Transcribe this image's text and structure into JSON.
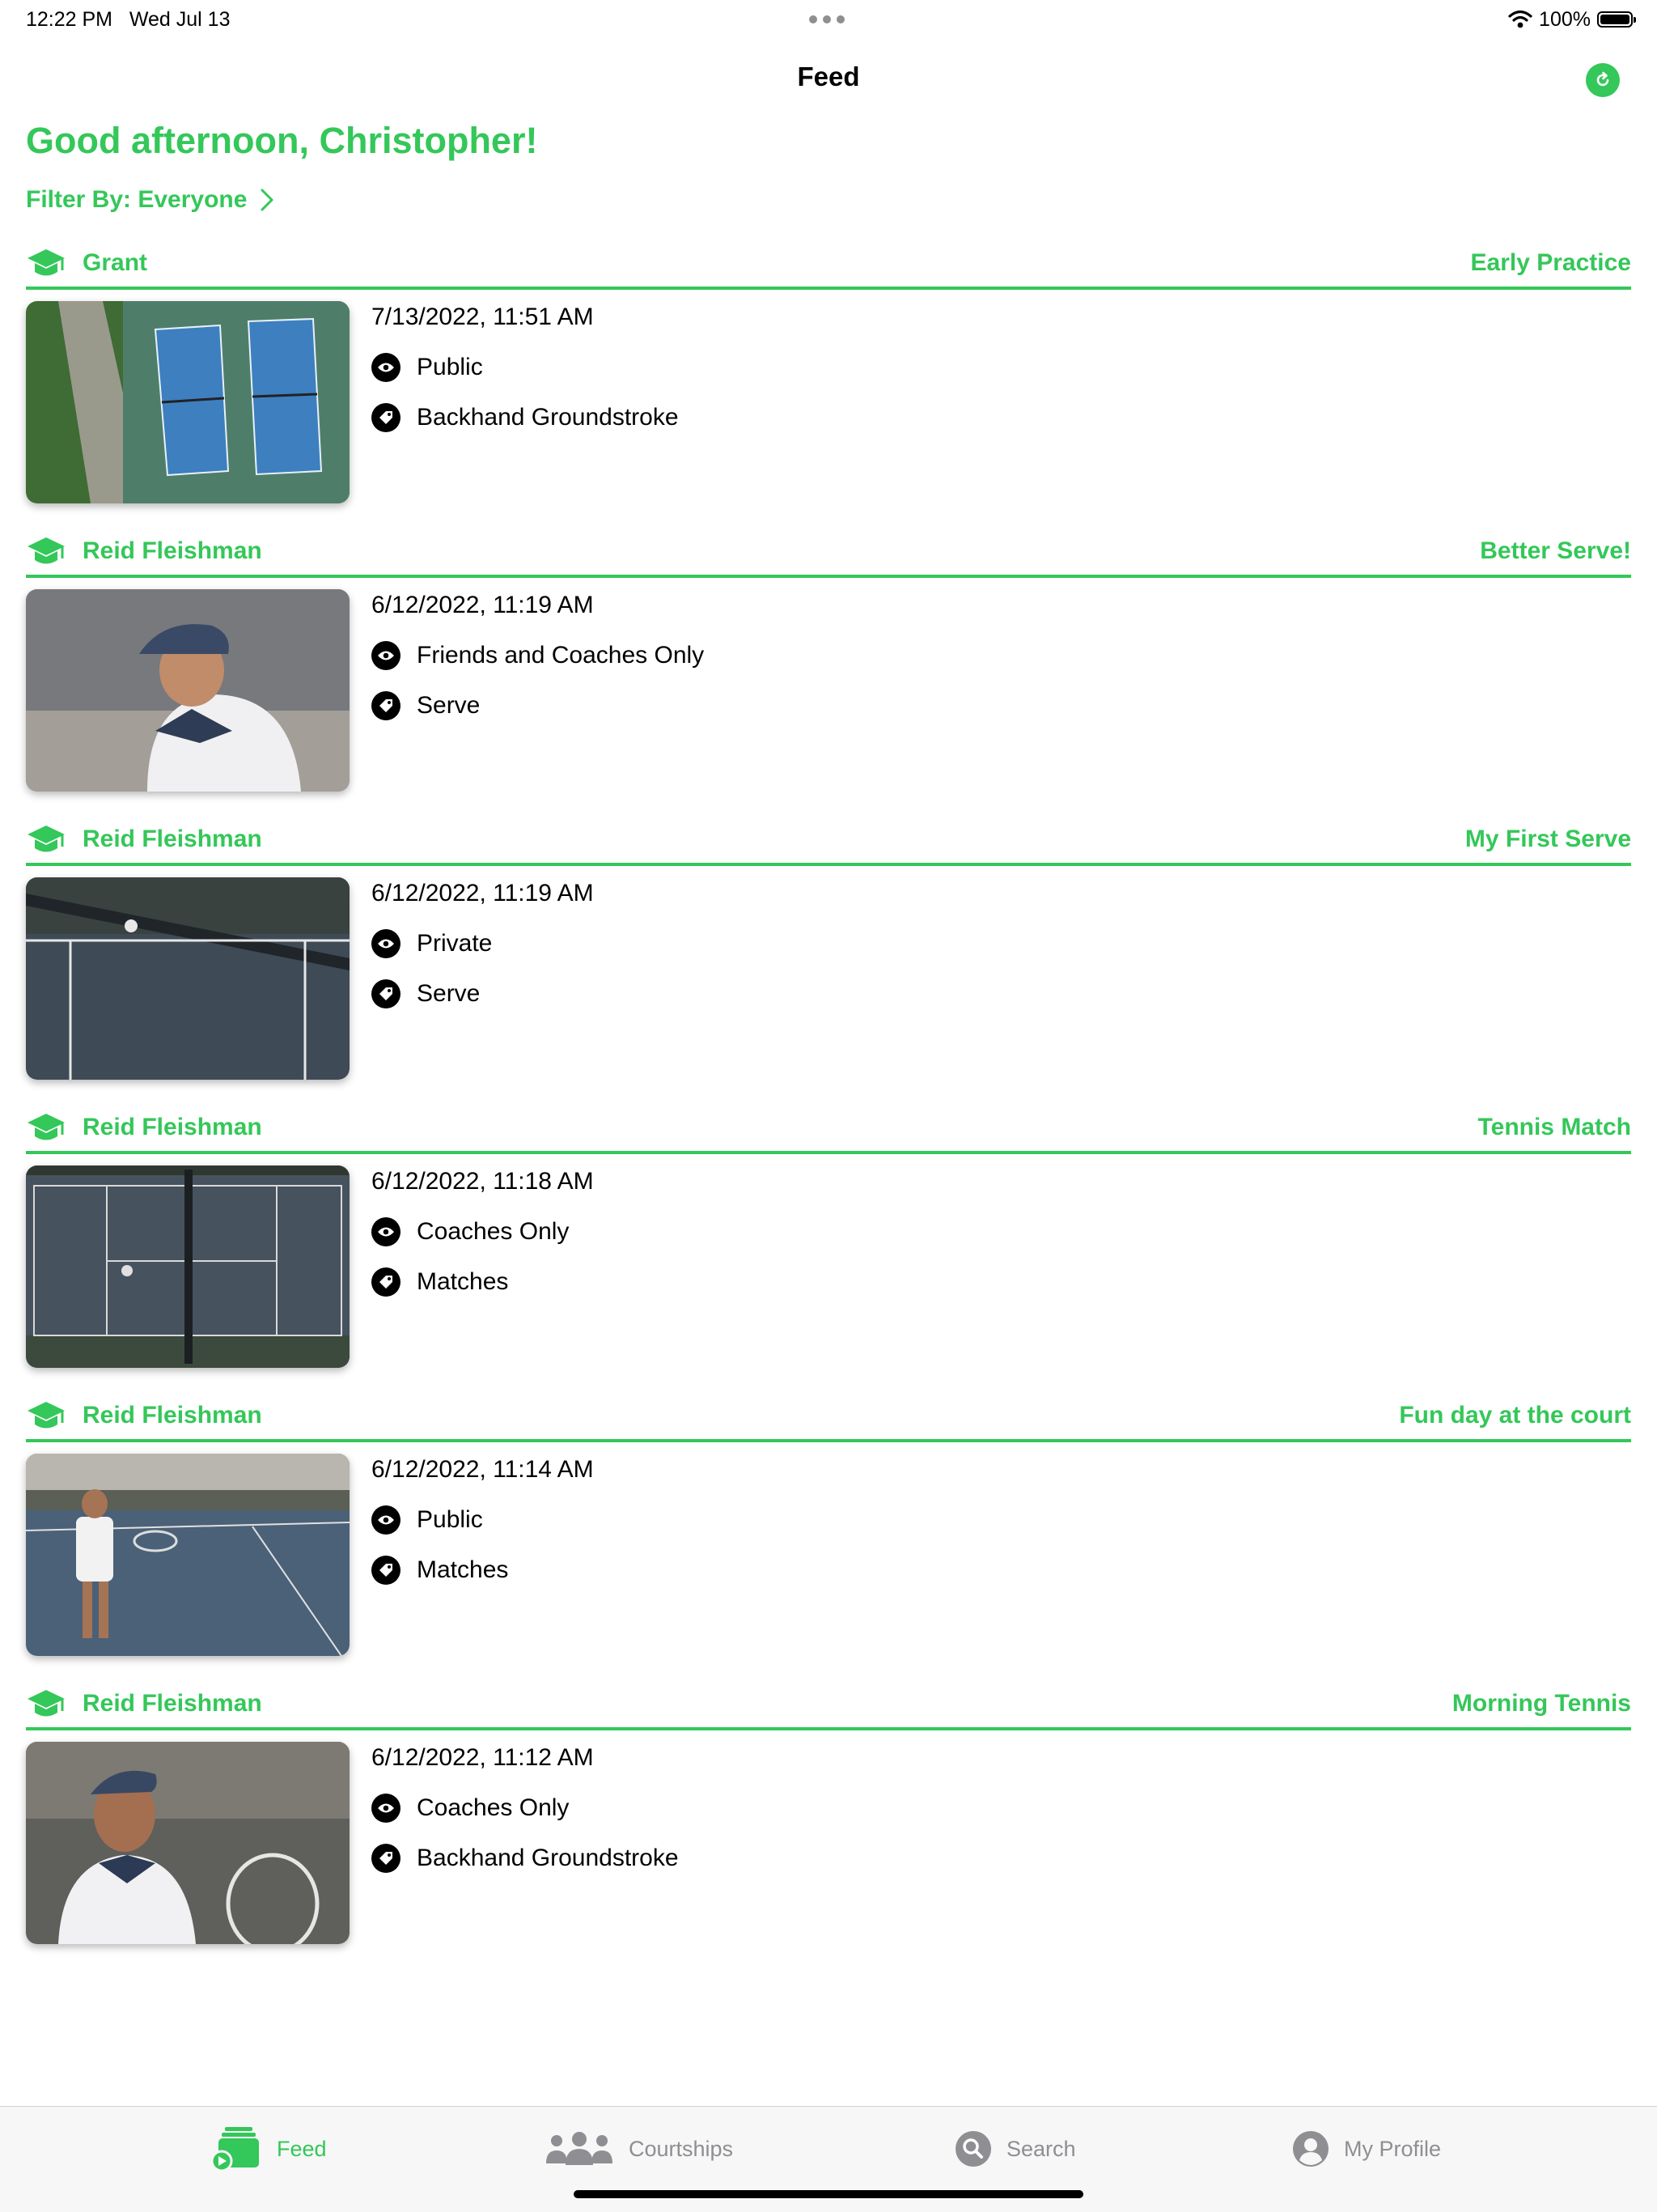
{
  "status_bar": {
    "time": "12:22 PM",
    "date": "Wed Jul 13",
    "battery": "100%"
  },
  "nav": {
    "title": "Feed"
  },
  "greeting": "Good afternoon, Christopher!",
  "filter": {
    "label": "Filter By: Everyone"
  },
  "feed": [
    {
      "author": "Grant",
      "session": "Early Practice",
      "date": "7/13/2022, 11:51 AM",
      "visibility": "Public",
      "tag": "Backhand Groundstroke"
    },
    {
      "author": "Reid Fleishman",
      "session": "Better Serve!",
      "date": "6/12/2022, 11:19 AM",
      "visibility": "Friends and Coaches Only",
      "tag": "Serve"
    },
    {
      "author": "Reid Fleishman",
      "session": "My First Serve",
      "date": "6/12/2022, 11:19 AM",
      "visibility": "Private",
      "tag": "Serve"
    },
    {
      "author": "Reid Fleishman",
      "session": "Tennis Match",
      "date": "6/12/2022, 11:18 AM",
      "visibility": "Coaches Only",
      "tag": "Matches"
    },
    {
      "author": "Reid Fleishman",
      "session": "Fun day at the court",
      "date": "6/12/2022, 11:14 AM",
      "visibility": "Public",
      "tag": "Matches"
    },
    {
      "author": "Reid Fleishman",
      "session": "Morning Tennis",
      "date": "6/12/2022, 11:12 AM",
      "visibility": "Coaches Only",
      "tag": "Backhand Groundstroke"
    }
  ],
  "tabs": [
    {
      "label": "Feed",
      "icon": "feed-icon",
      "active": true
    },
    {
      "label": "Courtships",
      "icon": "people-icon",
      "active": false
    },
    {
      "label": "Search",
      "icon": "search-icon",
      "active": false
    },
    {
      "label": "My Profile",
      "icon": "person-circle-icon",
      "active": false
    }
  ],
  "colors": {
    "accent": "#34c759",
    "inactive": "#8e8e93"
  }
}
